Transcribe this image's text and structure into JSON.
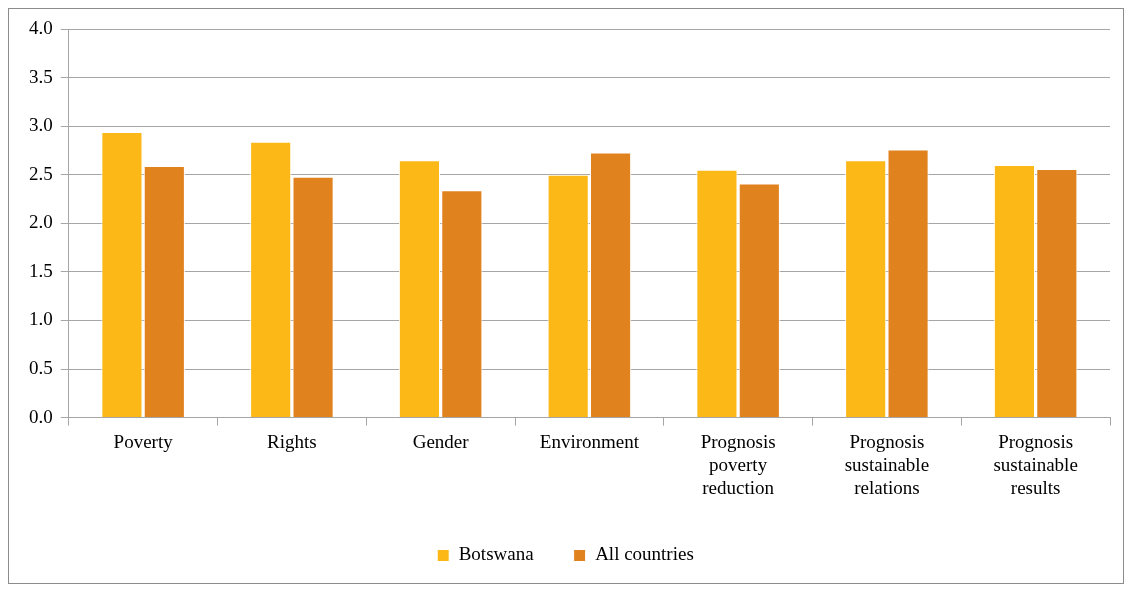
{
  "chart_data": {
    "type": "bar",
    "categories": [
      "Poverty",
      "Rights",
      "Gender",
      "Environment",
      "Prognosis poverty reduction",
      "Prognosis sustainable relations",
      "Prognosis sustainable results"
    ],
    "series": [
      {
        "name": "Botswana",
        "color": "#fbb817",
        "values": [
          2.94,
          2.84,
          2.65,
          2.5,
          2.55,
          2.65,
          2.6
        ]
      },
      {
        "name": "All countries",
        "color": "#e0821e",
        "values": [
          2.59,
          2.48,
          2.34,
          2.73,
          2.41,
          2.76,
          2.56
        ]
      }
    ],
    "ylim": [
      0,
      4
    ],
    "yticks": [
      {
        "value": 0,
        "label": "0.0"
      },
      {
        "value": 0.5,
        "label": "0.5"
      },
      {
        "value": 1,
        "label": "1.0"
      },
      {
        "value": 1.5,
        "label": "1.5"
      },
      {
        "value": 2,
        "label": "2.0"
      },
      {
        "value": 2.5,
        "label": "2.5"
      },
      {
        "value": 3,
        "label": "3.0"
      },
      {
        "value": 3.5,
        "label": "3.5"
      },
      {
        "value": 4,
        "label": "4.0"
      }
    ],
    "grid": "y",
    "legend": "bottom"
  }
}
